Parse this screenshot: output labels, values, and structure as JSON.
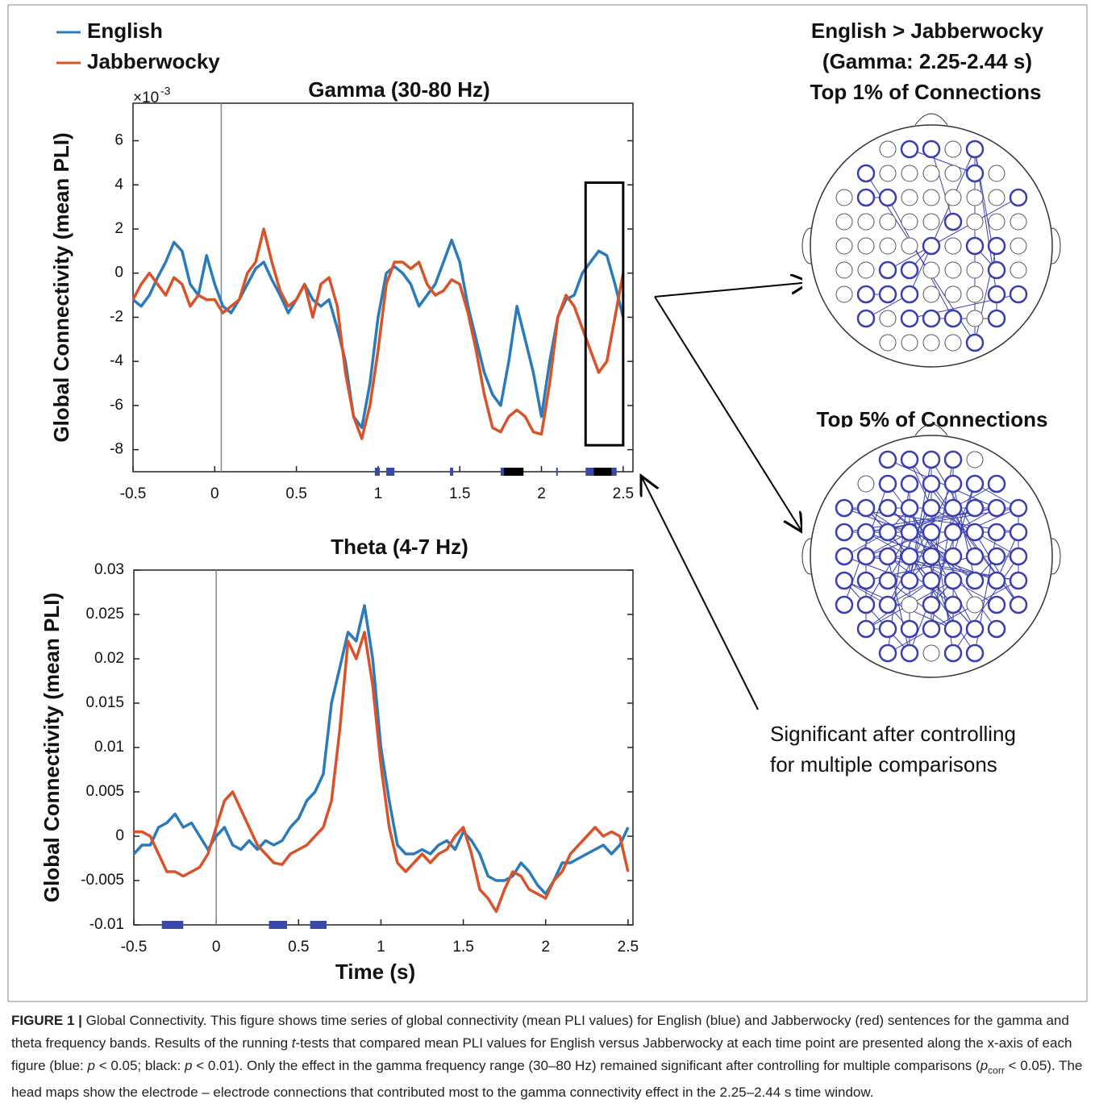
{
  "chart_data": [
    {
      "type": "line",
      "title": "Gamma (30-80 Hz)",
      "y_multiplier": {
        "base": "×10",
        "exponent": "-3"
      },
      "ylabel": "Global Connectivity (mean PLI)",
      "x": [
        -0.5,
        -0.45,
        -0.4,
        -0.35,
        -0.3,
        -0.25,
        -0.2,
        -0.15,
        -0.1,
        -0.05,
        0,
        0.05,
        0.1,
        0.15,
        0.2,
        0.25,
        0.3,
        0.35,
        0.4,
        0.45,
        0.5,
        0.55,
        0.6,
        0.65,
        0.7,
        0.75,
        0.8,
        0.85,
        0.9,
        0.95,
        1,
        1.05,
        1.1,
        1.15,
        1.2,
        1.25,
        1.3,
        1.35,
        1.4,
        1.45,
        1.5,
        1.55,
        1.6,
        1.65,
        1.7,
        1.75,
        1.8,
        1.85,
        1.9,
        1.95,
        2,
        2.05,
        2.1,
        2.15,
        2.2,
        2.25,
        2.3,
        2.35,
        2.4,
        2.45,
        2.5
      ],
      "xlim": [
        -0.5,
        2.56
      ],
      "ylim": [
        -9,
        7.7
      ],
      "xticks": [
        -0.5,
        0,
        0.5,
        1,
        1.5,
        2,
        2.5
      ],
      "yticks": [
        -8,
        -6,
        -4,
        -2,
        0,
        2,
        4,
        6
      ],
      "vline": 0.04,
      "series": [
        {
          "name": "English",
          "color": "#2b7bbb",
          "values": [
            -1.2,
            -1.5,
            -1,
            -0.2,
            0.5,
            1.4,
            1,
            -0.5,
            -1,
            0.8,
            -0.5,
            -1.5,
            -1.8,
            -1.2,
            -0.5,
            0.2,
            0.5,
            -0.3,
            -1,
            -1.8,
            -1.2,
            -0.5,
            -1.2,
            -1.5,
            -1.2,
            -2.5,
            -4,
            -6.5,
            -7,
            -5,
            -2,
            0,
            0.3,
            0,
            -0.5,
            -1.5,
            -1,
            -0.5,
            0.5,
            1.5,
            0.5,
            -1.5,
            -3,
            -4.5,
            -5.5,
            -6,
            -4,
            -1.5,
            -3,
            -4.5,
            -6.5,
            -4,
            -2,
            -1.2,
            -1,
            0,
            0.5,
            1,
            0.8,
            -0.5,
            -2
          ]
        },
        {
          "name": "Jabberwocky",
          "color": "#d9532a",
          "values": [
            -1.2,
            -0.5,
            0,
            -0.5,
            -1,
            -0.2,
            -0.5,
            -1.5,
            -1,
            -1.2,
            -1.2,
            -1.8,
            -1.5,
            -1.2,
            0,
            0.5,
            2,
            0.5,
            -0.8,
            -1.5,
            -1.2,
            -0.5,
            -2,
            -0.5,
            -0.2,
            -1.5,
            -4.5,
            -6.5,
            -7.5,
            -6,
            -3.5,
            -0.5,
            0.5,
            0.5,
            0.2,
            0.5,
            -0.5,
            -1,
            -0.8,
            -0.3,
            -0.5,
            -1.8,
            -3.5,
            -5.5,
            -7,
            -7.2,
            -6.5,
            -6.2,
            -6.5,
            -7.2,
            -7.3,
            -5,
            -2,
            -1,
            -1.5,
            -2.5,
            -3.5,
            -4.5,
            -4,
            -2,
            0
          ]
        }
      ],
      "significance": [
        {
          "start": 0.98,
          "end": 1.01,
          "color": "#3a49a8"
        },
        {
          "start": 1.05,
          "end": 1.1,
          "color": "#3a49a8"
        },
        {
          "start": 1.44,
          "end": 1.46,
          "color": "#3a49a8"
        },
        {
          "start": 1.75,
          "end": 1.77,
          "color": "#3a49a8"
        },
        {
          "start": 1.77,
          "end": 1.89,
          "color": "#000000"
        },
        {
          "start": 2.09,
          "end": 2.1,
          "color": "#3a49a8"
        },
        {
          "start": 2.27,
          "end": 2.32,
          "color": "#3a49a8"
        },
        {
          "start": 2.32,
          "end": 2.43,
          "color": "#000000"
        },
        {
          "start": 2.43,
          "end": 2.46,
          "color": "#3a49a8"
        }
      ],
      "highlight": {
        "xlim": [
          2.27,
          2.5
        ],
        "ylim": [
          -7.8,
          4.1
        ]
      }
    },
    {
      "type": "line",
      "title": "Theta (4-7 Hz)",
      "xlabel": "Time (s)",
      "ylabel": "Global Connectivity (mean PLI)",
      "x": [
        -0.5,
        -0.45,
        -0.4,
        -0.35,
        -0.3,
        -0.25,
        -0.2,
        -0.15,
        -0.1,
        -0.05,
        0,
        0.05,
        0.1,
        0.15,
        0.2,
        0.25,
        0.3,
        0.35,
        0.4,
        0.45,
        0.5,
        0.55,
        0.6,
        0.65,
        0.7,
        0.75,
        0.8,
        0.85,
        0.9,
        0.95,
        1,
        1.05,
        1.1,
        1.15,
        1.2,
        1.25,
        1.3,
        1.35,
        1.4,
        1.45,
        1.5,
        1.55,
        1.6,
        1.65,
        1.7,
        1.75,
        1.8,
        1.85,
        1.9,
        1.95,
        2,
        2.05,
        2.1,
        2.15,
        2.2,
        2.25,
        2.3,
        2.35,
        2.4,
        2.45,
        2.5
      ],
      "xlim": [
        -0.5,
        2.53
      ],
      "ylim": [
        -0.01,
        0.03
      ],
      "xticks": [
        -0.5,
        0,
        0.5,
        1,
        1.5,
        2,
        2.5
      ],
      "yticks": [
        -0.01,
        -0.005,
        0,
        0.005,
        0.01,
        0.015,
        0.02,
        0.025,
        0.03
      ],
      "vline": 0,
      "series": [
        {
          "color": "#2b7bbb",
          "values": [
            -0.002,
            -0.001,
            -0.001,
            0.001,
            0.0015,
            0.0025,
            0.001,
            0.0015,
            0,
            -0.0015,
            0,
            0.001,
            -0.001,
            -0.0015,
            -0.0005,
            -0.0015,
            -0.0005,
            -0.001,
            -0.0005,
            0.001,
            0.002,
            0.004,
            0.005,
            0.007,
            0.015,
            0.019,
            0.023,
            0.022,
            0.026,
            0.02,
            0.01,
            0.004,
            -0.001,
            -0.002,
            -0.002,
            -0.0015,
            -0.002,
            -0.001,
            -0.0005,
            -0.0015,
            0.0005,
            -0.0005,
            -0.002,
            -0.0045,
            -0.005,
            -0.005,
            -0.0045,
            -0.003,
            -0.004,
            -0.0055,
            -0.0065,
            -0.005,
            -0.003,
            -0.003,
            -0.0025,
            -0.002,
            -0.0015,
            -0.001,
            -0.002,
            -0.001,
            0.001
          ]
        },
        {
          "color": "#d9532a",
          "values": [
            0.0005,
            0.0005,
            0,
            -0.002,
            -0.004,
            -0.004,
            -0.0045,
            -0.004,
            -0.0035,
            -0.002,
            0.001,
            0.004,
            0.005,
            0.003,
            0.001,
            -0.001,
            -0.002,
            -0.003,
            -0.0032,
            -0.002,
            -0.0015,
            -0.001,
            0,
            0.001,
            0.004,
            0.012,
            0.022,
            0.02,
            0.023,
            0.017,
            0.008,
            0.001,
            -0.003,
            -0.004,
            -0.003,
            -0.002,
            -0.003,
            -0.002,
            -0.0015,
            0,
            0.001,
            -0.002,
            -0.006,
            -0.007,
            -0.0085,
            -0.006,
            -0.004,
            -0.0045,
            -0.006,
            -0.0065,
            -0.007,
            -0.005,
            -0.004,
            -0.002,
            -0.001,
            0,
            0.001,
            0,
            0.0005,
            0,
            -0.004
          ]
        }
      ],
      "significance": [
        {
          "start": -0.33,
          "end": -0.2,
          "color": "#3a49a8"
        },
        {
          "start": 0.32,
          "end": 0.43,
          "color": "#3a49a8"
        },
        {
          "start": 0.57,
          "end": 0.67,
          "color": "#3a49a8"
        }
      ]
    }
  ],
  "annotations": {
    "comparison_title": [
      "English > Jabberwocky",
      "(Gamma: 2.25-2.44 s)",
      "Top 1% of Connections"
    ],
    "top5_title": "Top 5% of Connections",
    "note": [
      "Significant after controlling",
      "for multiple comparisons"
    ]
  },
  "caption": [
    {
      "text": "FIGURE 1 |",
      "style": "bold"
    },
    {
      "text": " Global Connectivity. This figure shows time series of global connectivity (mean PLI values) for English (blue) and Jabberwocky (red) sentences for the gamma and theta frequency bands. Results of the running ",
      "style": "normal"
    },
    {
      "text": "t",
      "style": "italic"
    },
    {
      "text": "-tests that compared mean PLI values for English versus Jabberwocky at each time point are presented along the x-axis of each figure (blue: ",
      "style": "normal"
    },
    {
      "text": "p",
      "style": "italic"
    },
    {
      "text": " < 0.05; black: ",
      "style": "normal"
    },
    {
      "text": "p",
      "style": "italic"
    },
    {
      "text": " < 0.01). Only the effect in the gamma frequency range (30–80 Hz) remained significant after controlling for multiple comparisons (",
      "style": "normal"
    },
    {
      "text": "p",
      "style": "italic"
    },
    {
      "text": "corr",
      "style": "sub"
    },
    {
      "text": " < 0.05). The head maps show the electrode – electrode connections that contributed most to the gamma connectivity effect in the 2.25–2.44 s time window.",
      "style": "normal"
    }
  ]
}
